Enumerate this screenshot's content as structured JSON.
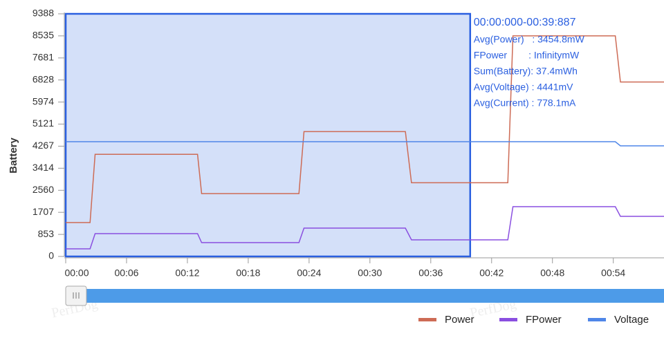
{
  "chart_data": {
    "type": "line",
    "y_label": "Battery",
    "x": [
      0,
      2.4,
      2.9,
      13.0,
      13.4,
      23.0,
      23.5,
      33.5,
      34.1,
      43.6,
      44.1,
      54.2,
      54.7,
      59
    ],
    "series": [
      {
        "name": "Power",
        "color": "#cd6b55",
        "values": [
          1310,
          1310,
          3950,
          3950,
          2430,
          2430,
          4830,
          4830,
          2850,
          2850,
          8535,
          8535,
          6750,
          6750
        ]
      },
      {
        "name": "FPower",
        "color": "#8a4fe0",
        "values": [
          294,
          294,
          883,
          883,
          535,
          535,
          1097,
          1097,
          642,
          642,
          1926,
          1926,
          1551,
          1551
        ]
      },
      {
        "name": "Voltage",
        "color": "#4f86e8",
        "values": [
          4441,
          4441,
          4441,
          4441,
          4441,
          4441,
          4441,
          4441,
          4441,
          4441,
          4441,
          4441,
          4280,
          4280
        ]
      }
    ],
    "xlim": [
      0,
      59
    ],
    "ylim": [
      0,
      9388
    ],
    "yticks": [
      0,
      853,
      1707,
      2560,
      3414,
      4267,
      5121,
      5974,
      6828,
      7681,
      8535,
      9388
    ],
    "xticks": [
      {
        "value": 0,
        "label": "00:00"
      },
      {
        "value": 6,
        "label": "00:06"
      },
      {
        "value": 12,
        "label": "00:12"
      },
      {
        "value": 18,
        "label": "00:18"
      },
      {
        "value": 24,
        "label": "00:24"
      },
      {
        "value": 30,
        "label": "00:30"
      },
      {
        "value": 36,
        "label": "00:36"
      },
      {
        "value": 42,
        "label": "00:42"
      },
      {
        "value": 48,
        "label": "00:48"
      },
      {
        "value": 54,
        "label": "00:54"
      }
    ],
    "selection": {
      "start": 0,
      "end": 39.887,
      "title": "00:00:000-00:39:887",
      "lines": [
        "Avg(Power)   : 3454.8mW",
        "FPower        : InfinitymW",
        "Sum(Battery): 37.4mWh",
        "Avg(Voltage) : 4441mV",
        "Avg(Current) : 778.1mA"
      ]
    },
    "watermark": "PerfDog"
  }
}
